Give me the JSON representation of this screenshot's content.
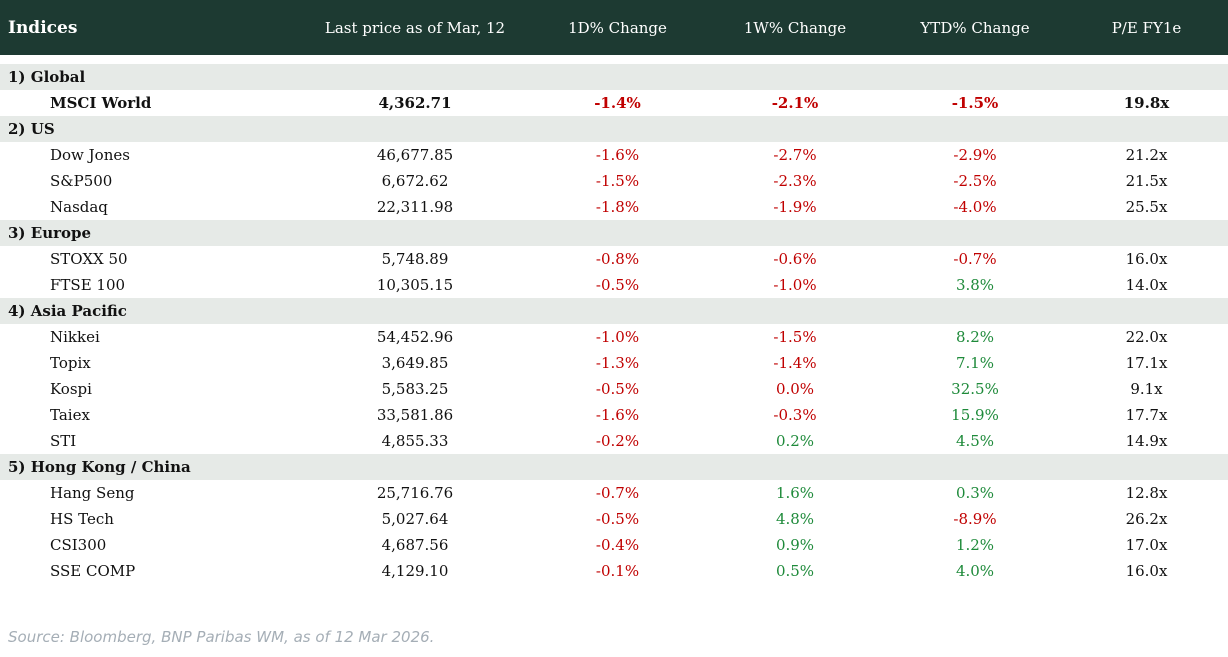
{
  "table": {
    "columns": [
      "Indices",
      "Last price as of Mar, 12",
      "1D% Change",
      "1W% Change",
      "YTD% Change",
      "P/E FY1e"
    ],
    "sections": [
      {
        "label": "1) Global",
        "rows": [
          {
            "name": "MSCI World",
            "price": "4,362.71",
            "emphasis": true,
            "changes": [
              {
                "value": "-1.4%",
                "tone": "neg"
              },
              {
                "value": "-2.1%",
                "tone": "neg"
              },
              {
                "value": "-1.5%",
                "tone": "neg"
              }
            ],
            "pe": "19.8x"
          }
        ]
      },
      {
        "label": "2) US",
        "rows": [
          {
            "name": "Dow Jones",
            "price": "46,677.85",
            "emphasis": false,
            "changes": [
              {
                "value": "-1.6%",
                "tone": "neg"
              },
              {
                "value": "-2.7%",
                "tone": "neg"
              },
              {
                "value": "-2.9%",
                "tone": "neg"
              }
            ],
            "pe": "21.2x"
          },
          {
            "name": "S&P500",
            "price": "6,672.62",
            "emphasis": false,
            "changes": [
              {
                "value": "-1.5%",
                "tone": "neg"
              },
              {
                "value": "-2.3%",
                "tone": "neg"
              },
              {
                "value": "-2.5%",
                "tone": "neg"
              }
            ],
            "pe": "21.5x"
          },
          {
            "name": "Nasdaq",
            "price": "22,311.98",
            "emphasis": false,
            "changes": [
              {
                "value": "-1.8%",
                "tone": "neg"
              },
              {
                "value": "-1.9%",
                "tone": "neg"
              },
              {
                "value": "-4.0%",
                "tone": "neg"
              }
            ],
            "pe": "25.5x"
          }
        ]
      },
      {
        "label": "3) Europe",
        "rows": [
          {
            "name": "STOXX 50",
            "price": "5,748.89",
            "emphasis": false,
            "changes": [
              {
                "value": "-0.8%",
                "tone": "neg"
              },
              {
                "value": "-0.6%",
                "tone": "neg"
              },
              {
                "value": "-0.7%",
                "tone": "neg"
              }
            ],
            "pe": "16.0x"
          },
          {
            "name": "FTSE 100",
            "price": "10,305.15",
            "emphasis": false,
            "changes": [
              {
                "value": "-0.5%",
                "tone": "neg"
              },
              {
                "value": "-1.0%",
                "tone": "neg"
              },
              {
                "value": "3.8%",
                "tone": "pos"
              }
            ],
            "pe": "14.0x"
          }
        ]
      },
      {
        "label": "4) Asia Pacific",
        "rows": [
          {
            "name": "Nikkei",
            "price": "54,452.96",
            "emphasis": false,
            "changes": [
              {
                "value": "-1.0%",
                "tone": "neg"
              },
              {
                "value": "-1.5%",
                "tone": "neg"
              },
              {
                "value": "8.2%",
                "tone": "pos"
              }
            ],
            "pe": "22.0x"
          },
          {
            "name": "Topix",
            "price": "3,649.85",
            "emphasis": false,
            "changes": [
              {
                "value": "-1.3%",
                "tone": "neg"
              },
              {
                "value": "-1.4%",
                "tone": "neg"
              },
              {
                "value": "7.1%",
                "tone": "pos"
              }
            ],
            "pe": "17.1x"
          },
          {
            "name": "Kospi",
            "price": "5,583.25",
            "emphasis": false,
            "changes": [
              {
                "value": "-0.5%",
                "tone": "neg"
              },
              {
                "value": "0.0%",
                "tone": "neg"
              },
              {
                "value": "32.5%",
                "tone": "pos"
              }
            ],
            "pe": "9.1x"
          },
          {
            "name": "Taiex",
            "price": "33,581.86",
            "emphasis": false,
            "changes": [
              {
                "value": "-1.6%",
                "tone": "neg"
              },
              {
                "value": "-0.3%",
                "tone": "neg"
              },
              {
                "value": "15.9%",
                "tone": "pos"
              }
            ],
            "pe": "17.7x"
          },
          {
            "name": "STI",
            "price": "4,855.33",
            "emphasis": false,
            "changes": [
              {
                "value": "-0.2%",
                "tone": "neg"
              },
              {
                "value": "0.2%",
                "tone": "pos"
              },
              {
                "value": "4.5%",
                "tone": "pos"
              }
            ],
            "pe": "14.9x"
          }
        ]
      },
      {
        "label": "5) Hong Kong / China",
        "rows": [
          {
            "name": "Hang Seng",
            "price": "25,716.76",
            "emphasis": false,
            "changes": [
              {
                "value": "-0.7%",
                "tone": "neg"
              },
              {
                "value": "1.6%",
                "tone": "pos"
              },
              {
                "value": "0.3%",
                "tone": "pos"
              }
            ],
            "pe": "12.8x"
          },
          {
            "name": "HS Tech",
            "price": "5,027.64",
            "emphasis": false,
            "changes": [
              {
                "value": "-0.5%",
                "tone": "neg"
              },
              {
                "value": "4.8%",
                "tone": "pos"
              },
              {
                "value": "-8.9%",
                "tone": "neg"
              }
            ],
            "pe": "26.2x"
          },
          {
            "name": "CSI300",
            "price": "4,687.56",
            "emphasis": false,
            "changes": [
              {
                "value": "-0.4%",
                "tone": "neg"
              },
              {
                "value": "0.9%",
                "tone": "pos"
              },
              {
                "value": "1.2%",
                "tone": "pos"
              }
            ],
            "pe": "17.0x"
          },
          {
            "name": "SSE COMP",
            "price": "4,129.10",
            "emphasis": false,
            "changes": [
              {
                "value": "-0.1%",
                "tone": "neg"
              },
              {
                "value": "0.5%",
                "tone": "pos"
              },
              {
                "value": "4.0%",
                "tone": "pos"
              }
            ],
            "pe": "16.0x"
          }
        ]
      }
    ]
  },
  "source_note": "Source: Bloomberg, BNP Paribas WM, as of 12 Mar 2026.",
  "colors": {
    "header_bg": "#1d3a32",
    "section_row_bg": "#e6eae7",
    "negative": "#c00000",
    "positive": "#1e8a3a",
    "source_text": "#a5aeb6",
    "body_text": "#111111"
  }
}
